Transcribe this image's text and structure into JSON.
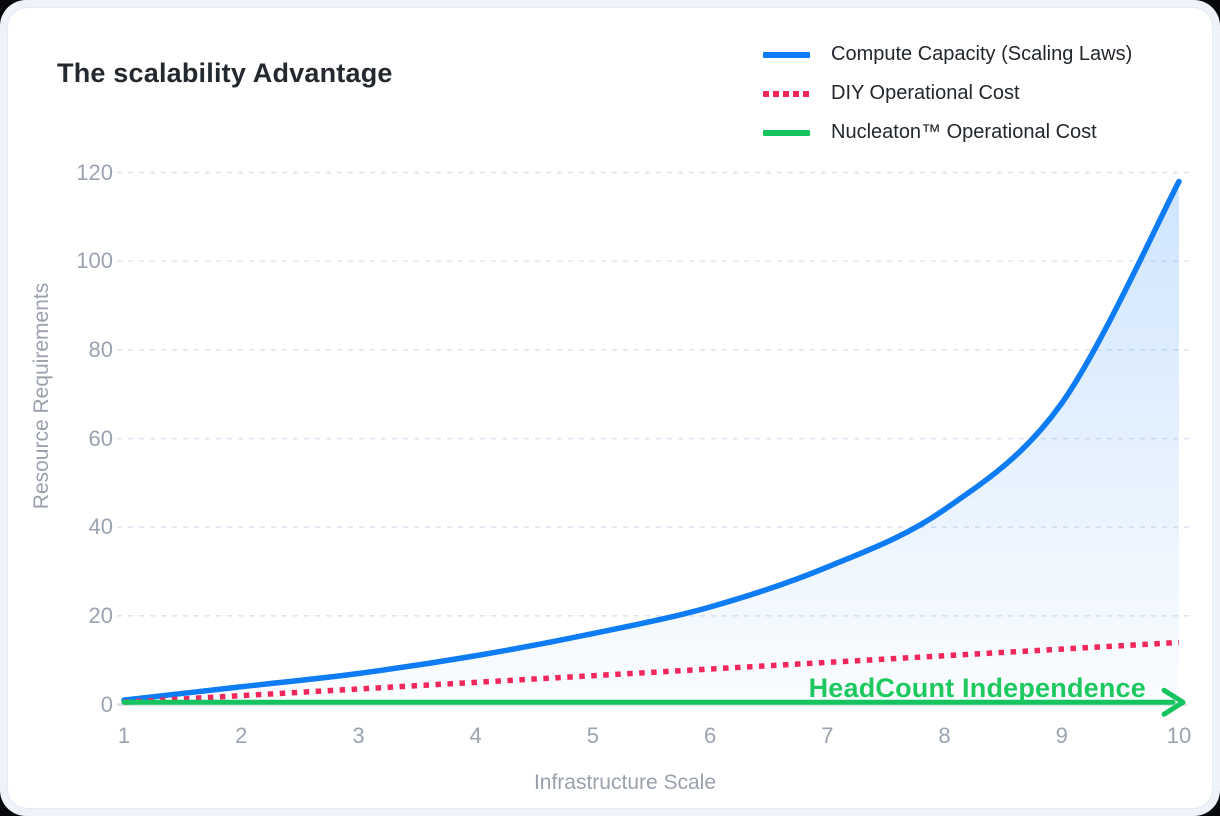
{
  "window": {
    "background": "#eef2f9",
    "card_background": "#ffffff"
  },
  "header": {
    "title": "The scalability Advantage"
  },
  "legend": {
    "position": "top-right",
    "items": [
      {
        "label": "Compute Capacity (Scaling Laws)",
        "color": "#0e7cf4",
        "style": "solid"
      },
      {
        "label": "DIY Operational Cost",
        "color": "#f0275a",
        "style": "dotted"
      },
      {
        "label": "Nucleaton™ Operational Cost",
        "color": "#16c45f",
        "style": "solid"
      }
    ]
  },
  "annotation": {
    "text": "HeadCount Independence",
    "color": "#1dc95f",
    "arrow": "right",
    "arrow_color": "#16c45f"
  },
  "chart_data": {
    "type": "line",
    "title": "The scalability Advantage",
    "xlabel": "Infrastructure Scale",
    "ylabel": "Resource Requirements",
    "x": [
      1,
      2,
      3,
      4,
      5,
      6,
      7,
      8,
      9,
      10
    ],
    "xticks": [
      1,
      2,
      3,
      4,
      5,
      6,
      7,
      8,
      9,
      10
    ],
    "yticks": [
      0,
      20,
      40,
      60,
      80,
      100,
      120
    ],
    "xlim": [
      1,
      10
    ],
    "ylim": [
      0,
      120
    ],
    "grid": "horizontal-dashed",
    "grid_color": "#dde7f3",
    "baseline_color": "#d7dde6",
    "legend_position": "top-right",
    "series": [
      {
        "name": "Compute Capacity (Scaling Laws)",
        "color": "#0e7cf4",
        "style": "solid",
        "smooth": true,
        "fill": true,
        "fill_gradient_top": "rgba(14,124,244,0.20)",
        "fill_gradient_bottom": "rgba(14,124,244,0.02)",
        "values": [
          1,
          4,
          7,
          11,
          16,
          22,
          31,
          44,
          68,
          118
        ]
      },
      {
        "name": "DIY Operational Cost",
        "color": "#f0275a",
        "style": "dotted",
        "smooth": false,
        "fill": false,
        "values": [
          0.5,
          2,
          3.5,
          5,
          6.5,
          8,
          9.5,
          11,
          12.5,
          14
        ]
      },
      {
        "name": "Nucleaton™ Operational Cost",
        "color": "#16c45f",
        "style": "solid-arrow",
        "smooth": false,
        "fill": false,
        "values": [
          0.5,
          0.5,
          0.5,
          0.5,
          0.5,
          0.5,
          0.5,
          0.5,
          0.5,
          0.5
        ]
      }
    ]
  }
}
